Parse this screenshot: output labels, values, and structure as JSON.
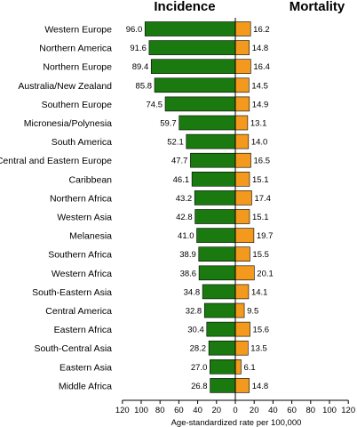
{
  "chart_data": {
    "type": "bar",
    "orientation": "horizontal-diverging",
    "categories": [
      "Western Europe",
      "Northern America",
      "Northern Europe",
      "Australia/New Zealand",
      "Southern Europe",
      "Micronesia/Polynesia",
      "South America",
      "Central and Eastern Europe",
      "Caribbean",
      "Northern Africa",
      "Western Asia",
      "Melanesia",
      "Southern Africa",
      "Western Africa",
      "South-Eastern Asia",
      "Central America",
      "Eastern Africa",
      "South-Central Asia",
      "Eastern Asia",
      "Middle Africa"
    ],
    "series": [
      {
        "name": "Incidence",
        "side": "left",
        "color": "#1a7a10",
        "values": [
          96.0,
          91.6,
          89.4,
          85.8,
          74.5,
          59.7,
          52.1,
          47.7,
          46.1,
          43.2,
          42.8,
          41.0,
          38.9,
          38.6,
          34.8,
          32.8,
          30.4,
          28.2,
          27.0,
          26.8
        ],
        "value_labels": [
          "96.0",
          "91.6",
          "89.4",
          "85.8",
          "74.5",
          "59.7",
          "52.1",
          "47.7",
          "46.1",
          "43.2",
          "42.8",
          "41.0",
          "38.9",
          "38.6",
          "34.8",
          "32.8",
          "30.4",
          "28.2",
          "27.0",
          "26.8"
        ]
      },
      {
        "name": "Mortality",
        "side": "right",
        "color": "#f39a1e",
        "values": [
          16.2,
          14.8,
          16.4,
          14.5,
          14.9,
          13.1,
          14.0,
          16.5,
          15.1,
          17.4,
          15.1,
          19.7,
          15.5,
          20.1,
          14.1,
          9.5,
          15.6,
          13.5,
          6.1,
          14.8
        ],
        "value_labels": [
          "16.2",
          "14.8",
          "16.4",
          "14.5",
          "14.9",
          "13.1",
          "14.0",
          "16.5",
          "15.1",
          "17.4",
          "15.1",
          "19.7",
          "15.5",
          "20.1",
          "14.1",
          "9.5",
          "15.6",
          "13.5",
          "6.1",
          "14.8"
        ]
      }
    ],
    "xlabel": "Age-standardized rate per 100,000",
    "xlim_left": [
      0,
      120
    ],
    "xlim_right": [
      0,
      120
    ],
    "xticks_left": [
      "120",
      "100",
      "80",
      "60",
      "40",
      "20",
      "0"
    ],
    "xticks_right": [
      "20",
      "40",
      "60",
      "80",
      "100",
      "120"
    ],
    "grid": false,
    "legend": "panel titles above bars"
  }
}
